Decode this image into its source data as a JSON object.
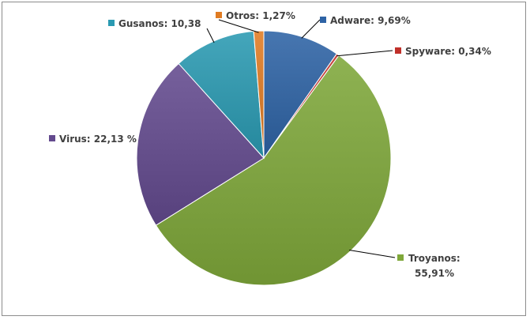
{
  "chart_data": {
    "type": "pie",
    "title": "",
    "legend": "none",
    "slices": [
      {
        "name": "Adware",
        "value": 9.69,
        "label": "Adware: 9,69%",
        "color": "#2E63A5"
      },
      {
        "name": "Spyware",
        "value": 0.34,
        "label": "Spyware: 0,34%",
        "color": "#C0302A"
      },
      {
        "name": "Troyanos",
        "value": 55.91,
        "label_lines": [
          "Troyanos:",
          "55,91%"
        ],
        "color": "#7FA83A"
      },
      {
        "name": "Virus",
        "value": 22.13,
        "label": "Virus: 22,13 %",
        "color": "#634A8E"
      },
      {
        "name": "Gusanos",
        "value": 10.38,
        "label": "Gusanos: 10,38",
        "color": "#2A9AB2"
      },
      {
        "name": "Otros",
        "value": 1.27,
        "label": "Otros: 1,27%",
        "color": "#E07B22"
      }
    ]
  }
}
